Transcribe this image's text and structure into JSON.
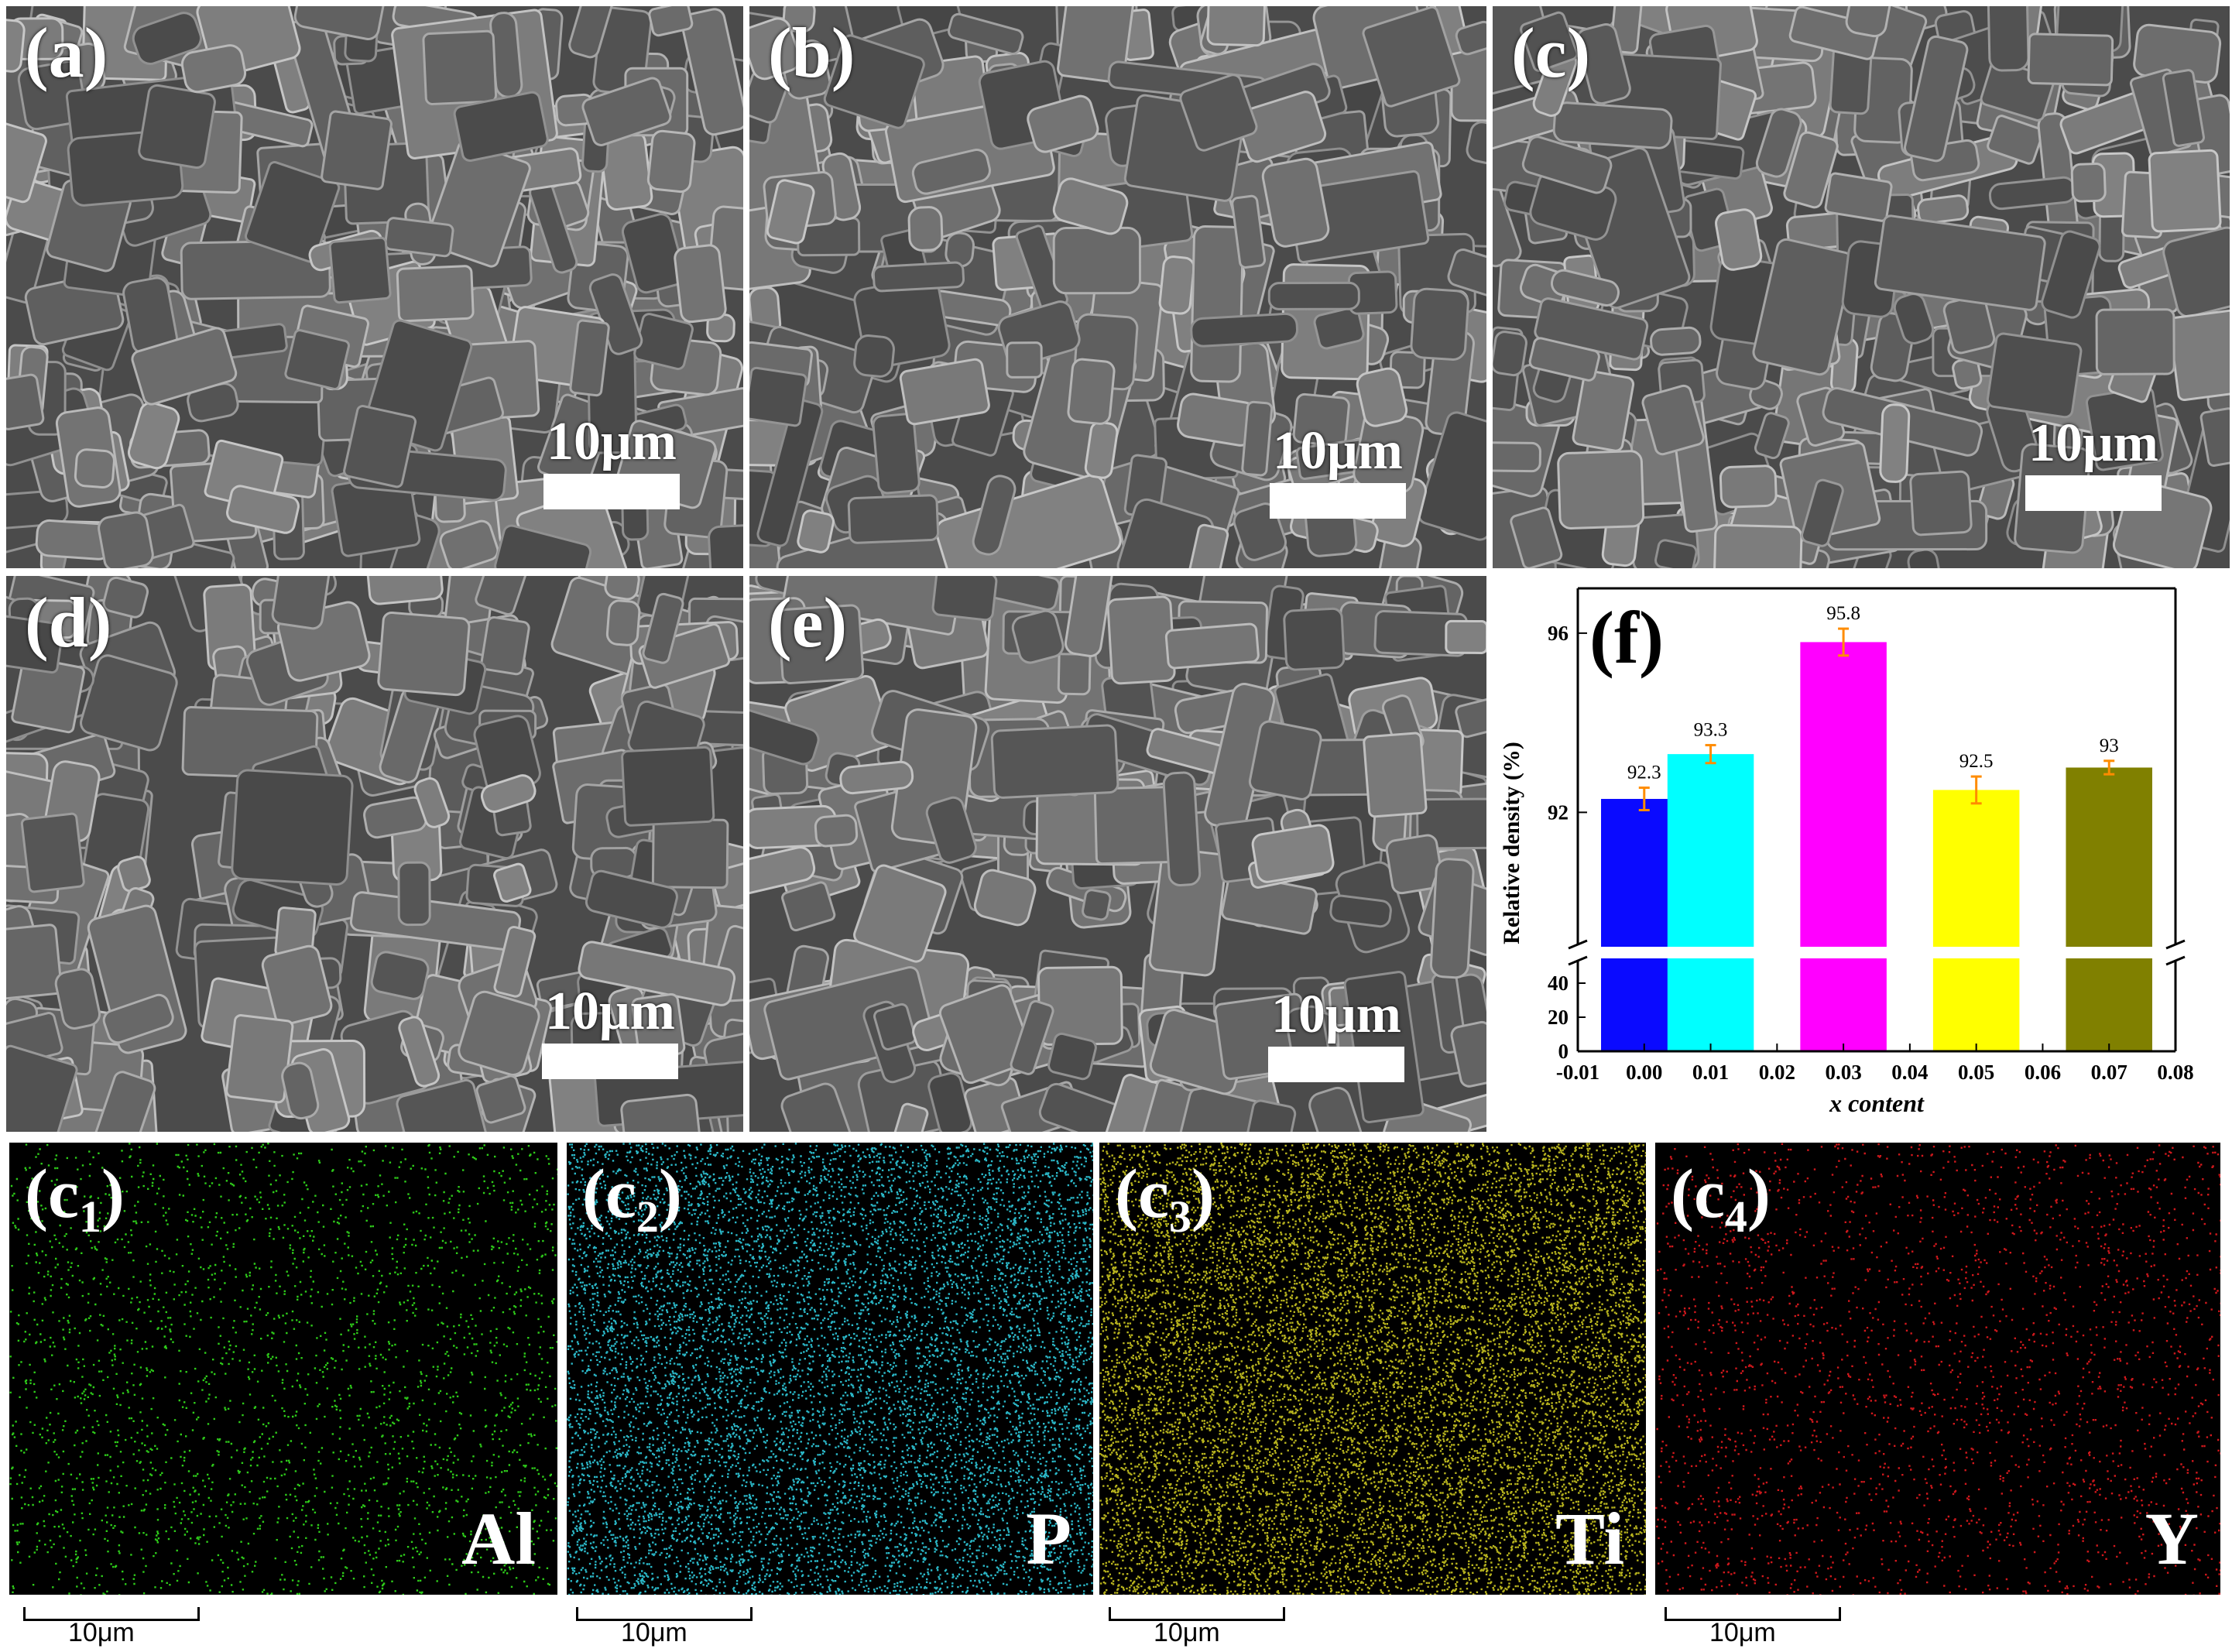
{
  "sem_panels": [
    {
      "label": "(a)",
      "scale": "10μm"
    },
    {
      "label": "(b)",
      "scale": "10μm"
    },
    {
      "label": "(c)",
      "scale": "10μm"
    },
    {
      "label": "(d)",
      "scale": "10μm"
    },
    {
      "label": "(e)",
      "scale": "10μm"
    }
  ],
  "eds_panels": [
    {
      "label_main": "(c",
      "label_sub": "1",
      "label_close": ")",
      "element": "Al",
      "scale": "10μm",
      "dot_color": "#2ecc1a"
    },
    {
      "label_main": "(c",
      "label_sub": "2",
      "label_close": ")",
      "element": "P",
      "scale": "10μm",
      "dot_color": "#2bb8c8"
    },
    {
      "label_main": "(c",
      "label_sub": "3",
      "label_close": ")",
      "element": "Ti",
      "scale": "10μm",
      "dot_color": "#b8b41e"
    },
    {
      "label_main": "(c",
      "label_sub": "4",
      "label_close": ")",
      "element": "Y",
      "scale": "10μm",
      "dot_color": "#d0181c"
    }
  ],
  "chart_data": {
    "type": "bar",
    "panel_label": "(f)",
    "xlabel": "x content",
    "ylabel": "Relative density (%)",
    "x": [
      0.0,
      0.01,
      0.03,
      0.05,
      0.07
    ],
    "values": [
      92.3,
      93.3,
      95.8,
      92.5,
      93
    ],
    "value_labels": [
      "92.3",
      "93.3",
      "95.8",
      "92.5",
      "93"
    ],
    "errors": [
      0.25,
      0.2,
      0.3,
      0.3,
      0.15
    ],
    "colors": [
      "#0a0aff",
      "#00ffff",
      "#ff00ff",
      "#ffff00",
      "#808000"
    ],
    "error_color": "#ff8c00",
    "xlim": [
      -0.01,
      0.08
    ],
    "xticks": [
      "-0.01",
      "0.00",
      "0.01",
      "0.02",
      "0.03",
      "0.04",
      "0.05",
      "0.06",
      "0.07",
      "0.08"
    ],
    "y_break": true,
    "ylim_lower": [
      0,
      50
    ],
    "yticks_lower": [
      "0",
      "20",
      "40"
    ],
    "ylim_upper": [
      89,
      97
    ],
    "yticks_upper": [
      "92",
      "96"
    ],
    "grid": false
  }
}
